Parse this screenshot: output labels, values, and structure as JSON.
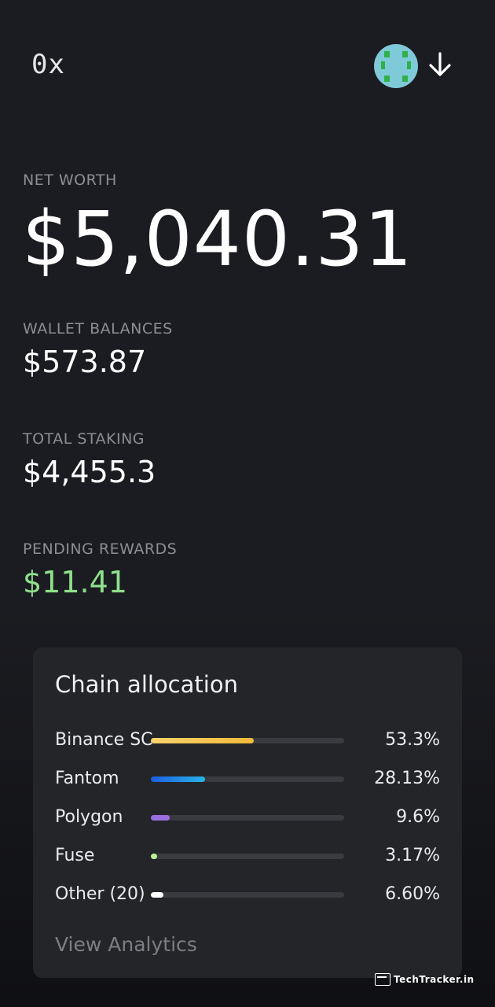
{
  "header": {
    "logo": "0x",
    "avatar_icon": "identicon-avatar-icon",
    "chevron_icon": "arrow-down-icon"
  },
  "net_worth": {
    "label": "NET WORTH",
    "value": "$5,040.31"
  },
  "wallet_balances": {
    "label": "WALLET BALANCES",
    "value": "$573.87"
  },
  "total_staking": {
    "label": "TOTAL STAKING",
    "value": "$4,455.3"
  },
  "pending_rewards": {
    "label": "PENDING REWARDS",
    "value": "$11.41",
    "color": "#8fe08c"
  },
  "chain_allocation": {
    "title": "Chain allocation",
    "items": [
      {
        "name": "Binance SC",
        "pct": "53.3%",
        "fraction": 0.533,
        "color": "#f4c84c"
      },
      {
        "name": "Fantom",
        "pct": "28.13%",
        "fraction": 0.2813,
        "color": "#1f8fe8"
      },
      {
        "name": "Polygon",
        "pct": "9.6%",
        "fraction": 0.096,
        "color": "#9b6ee0"
      },
      {
        "name": "Fuse",
        "pct": "3.17%",
        "fraction": 0.0317,
        "color": "#b9ef9a"
      },
      {
        "name": "Other (20)",
        "pct": "6.60%",
        "fraction": 0.066,
        "color": "#ffffff"
      }
    ],
    "view_link": "View Analytics"
  },
  "watermark": "TechTracker.in"
}
